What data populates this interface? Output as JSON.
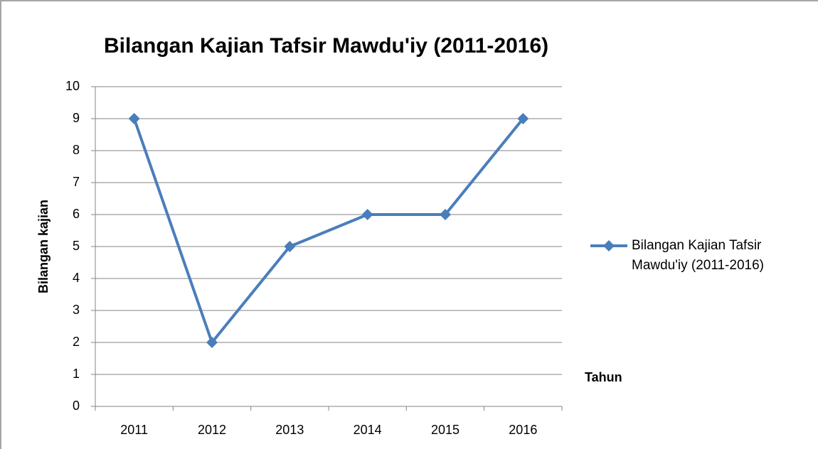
{
  "chart_data": {
    "type": "line",
    "title": "Bilangan Kajian Tafsir Mawdu'iy (2011-2016)",
    "x_label": "Tahun",
    "y_label": "Bilangan kajian",
    "categories": [
      "2011",
      "2012",
      "2013",
      "2014",
      "2015",
      "2016"
    ],
    "series": [
      {
        "name": "Bilangan Kajian Tafsir Mawdu'iy (2011-2016)",
        "color": "#4a7ebb",
        "values": [
          9,
          2,
          5,
          6,
          6,
          9
        ]
      }
    ],
    "ylim": [
      0,
      10
    ],
    "yticks": [
      0,
      1,
      2,
      3,
      4,
      5,
      6,
      7,
      8,
      9,
      10
    ],
    "grid": true,
    "legend": "right"
  }
}
